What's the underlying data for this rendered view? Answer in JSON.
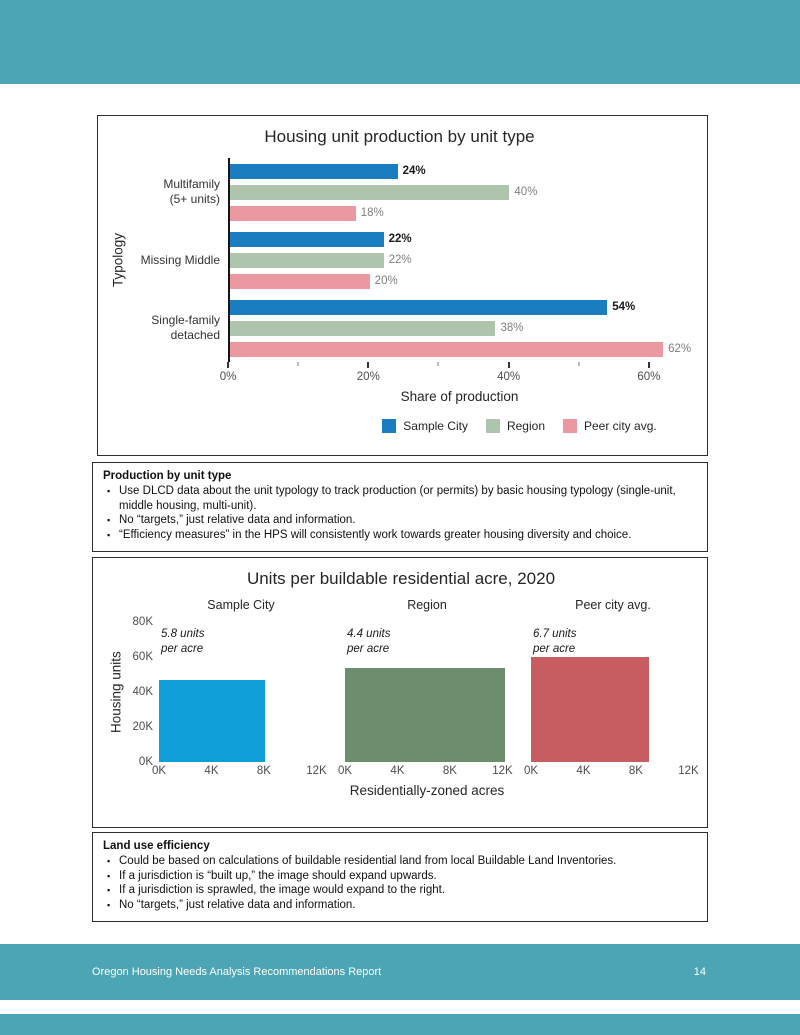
{
  "theme": {
    "accent_teal": "#4BA5B4"
  },
  "footer": {
    "title": "Oregon Housing Needs Analysis Recommendations Report",
    "page": "14"
  },
  "notes_production": {
    "title": "Production by unit type",
    "bullets": [
      "Use DLCD data about the unit typology to track production (or permits) by basic housing typology (single-unit, middle housing, multi-unit).",
      "No “targets,” just relative data and information.",
      "“Efficiency measures” in the HPS will consistently work towards greater housing diversity and choice."
    ]
  },
  "notes_landuse": {
    "title": "Land use efficiency",
    "bullets": [
      "Could be based on calculations of buildable residential land from local Buildable Land Inventories.",
      "If a jurisdiction is “built up,” the image should expand upwards.",
      "If a jurisdiction is sprawled, the image would expand to the right.",
      "No “targets,” just relative data and information."
    ]
  },
  "chart_data": [
    {
      "type": "bar",
      "orientation": "horizontal",
      "title": "Housing unit production by unit type",
      "xlabel": "Share of production",
      "ylabel": "Typology",
      "categories": [
        "Multifamily\n(5+ units)",
        "Missing Middle",
        "Single-family\ndetached"
      ],
      "series": [
        {
          "name": "Sample City",
          "color": "#1A7DC0",
          "values": [
            24,
            22,
            54
          ],
          "label_color": "#1a1a1a",
          "label_bold": true
        },
        {
          "name": "Region",
          "color": "#AFC4AC",
          "values": [
            40,
            22,
            38
          ],
          "label_color": "#7f7f7f",
          "label_bold": false
        },
        {
          "name": "Peer city avg.",
          "color": "#EC98A3",
          "values": [
            18,
            20,
            62
          ],
          "label_color": "#7f7f7f",
          "label_bold": false
        }
      ],
      "value_suffix": "%",
      "xlim": [
        0,
        66
      ],
      "xticks": [
        {
          "value": 0,
          "label": "0%"
        },
        {
          "value": 20,
          "label": "20%"
        },
        {
          "value": 40,
          "label": "40%"
        },
        {
          "value": 60,
          "label": "60%"
        }
      ],
      "xticks_minor": [
        10,
        30,
        50
      ],
      "legend_position": "bottom",
      "grid": false
    },
    {
      "type": "bar",
      "variant": "area-rectangles",
      "title": "Units per buildable residential acre, 2020",
      "xlabel": "Residentially-zoned acres",
      "ylabel": "Housing units",
      "ylim": [
        0,
        80
      ],
      "yticks": [
        {
          "value": 0,
          "label": "0K"
        },
        {
          "value": 20,
          "label": "20K"
        },
        {
          "value": 40,
          "label": "40K"
        },
        {
          "value": 60,
          "label": "60K"
        },
        {
          "value": 80,
          "label": "80K"
        }
      ],
      "xlim": [
        0,
        12.5
      ],
      "xticks": [
        {
          "value": 0,
          "label": "0K"
        },
        {
          "value": 4,
          "label": "4K"
        },
        {
          "value": 8,
          "label": "8K"
        },
        {
          "value": 12,
          "label": "12K"
        }
      ],
      "panels": [
        {
          "name": "Sample City",
          "color": "#0F9ED5",
          "acres_k": 8.1,
          "units_k": 47,
          "annotation": "5.8 units\nper acre"
        },
        {
          "name": "Region",
          "color": "#6D8E6E",
          "acres_k": 12.2,
          "units_k": 54,
          "annotation": "4.4 units\nper acre"
        },
        {
          "name": "Peer city avg.",
          "color": "#C75D60",
          "acres_k": 9.0,
          "units_k": 60,
          "annotation": "6.7 units\nper acre"
        }
      ],
      "grid": false
    }
  ]
}
